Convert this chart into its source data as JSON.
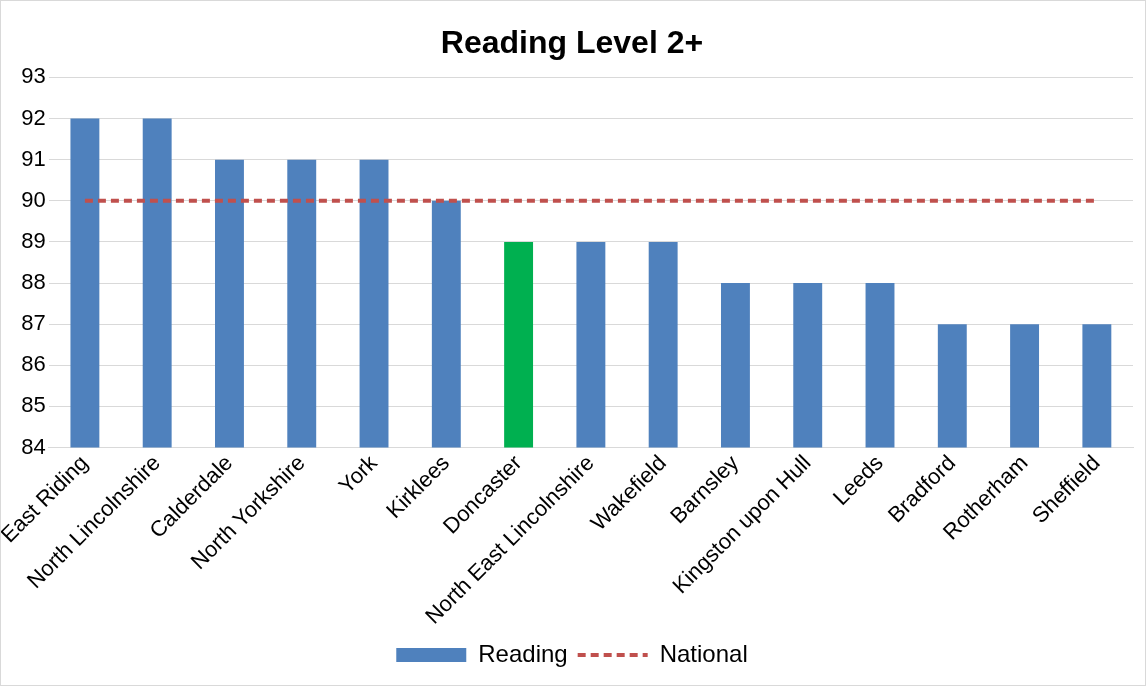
{
  "chart_data": {
    "type": "bar",
    "title": "Reading Level 2+",
    "categories": [
      "East Riding",
      "North Lincolnshire",
      "Calderdale",
      "North Yorkshire",
      "York",
      "Kirklees",
      "Doncaster",
      "North East Lincolnshire",
      "Wakefield",
      "Barnsley",
      "Kingston upon Hull",
      "Leeds",
      "Bradford",
      "Rotherham",
      "Sheffield"
    ],
    "series": [
      {
        "name": "Reading",
        "color": "#4f81bd",
        "colors": [
          "#4f81bd",
          "#4f81bd",
          "#4f81bd",
          "#4f81bd",
          "#4f81bd",
          "#4f81bd",
          "#00b050",
          "#4f81bd",
          "#4f81bd",
          "#4f81bd",
          "#4f81bd",
          "#4f81bd",
          "#4f81bd",
          "#4f81bd",
          "#4f81bd"
        ],
        "values": [
          92,
          92,
          91,
          91,
          91,
          90,
          89,
          89,
          89,
          88,
          88,
          88,
          87,
          87,
          87
        ]
      },
      {
        "name": "National",
        "type": "line",
        "color": "#c0504d",
        "line_style": "dashed",
        "marker": "none",
        "values": [
          90,
          90,
          90,
          90,
          90,
          90,
          90,
          90,
          90,
          90,
          90,
          90,
          90,
          90,
          90
        ]
      }
    ],
    "ylim": [
      84,
      93
    ],
    "yticks": [
      84,
      85,
      86,
      87,
      88,
      89,
      90,
      91,
      92,
      93
    ],
    "grid": "y",
    "legend": "bottom"
  }
}
